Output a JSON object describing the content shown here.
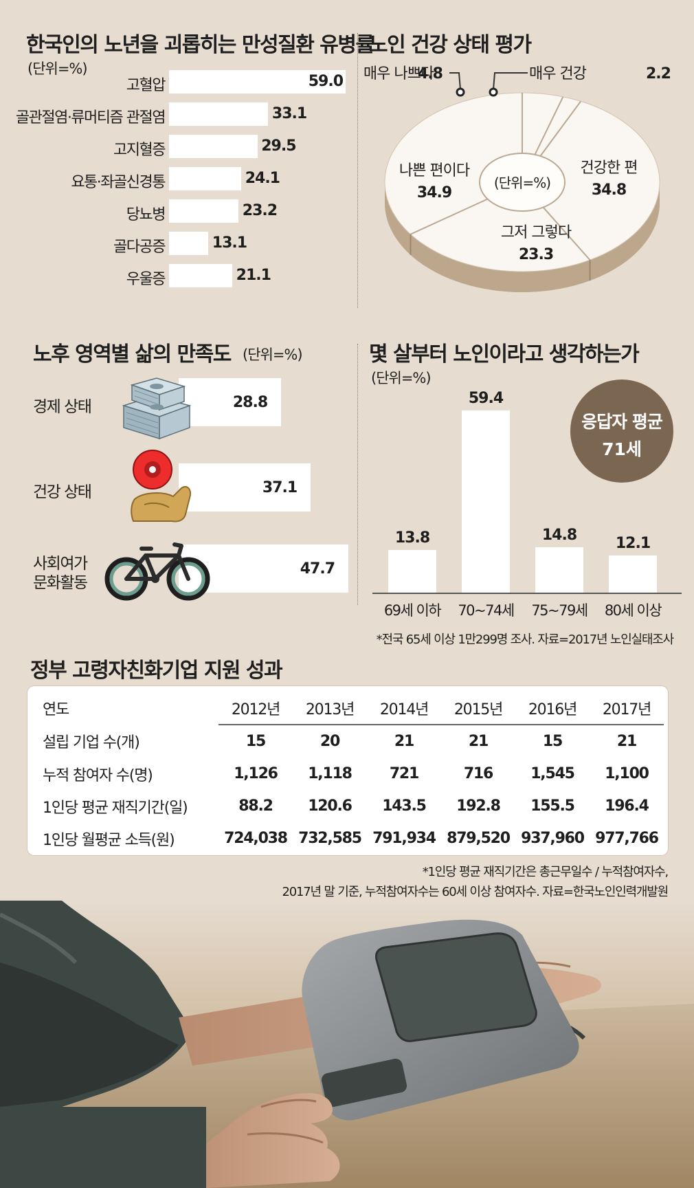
{
  "disease": {
    "title": "한국인의 노년을 괴롭히는 만성질환 유병률",
    "unit": "(단위=%)"
  },
  "health": {
    "title": "노인 건강 상태 평가",
    "unit": "(단위=%)",
    "colors": {
      "face": "#faf6f1",
      "side": "#bda78c",
      "lines": "#b9a893"
    }
  },
  "satisfaction": {
    "title": "노후 영역별 삶의 만족도",
    "unit": "(단위=%)",
    "icons": [
      "money-stack-icon",
      "flexed-arm-icon",
      "bicycle-icon"
    ]
  },
  "age": {
    "title": "몇 살부터 노인이라고 생각하는가",
    "unit": "(단위=%)",
    "badge_line1": "응답자 평균",
    "badge_line2": "71세",
    "badge_color": "#7b6651",
    "source": "*전국 65세 이상 1만299명 조사. 자료=2017년 노인실태조사"
  },
  "table": {
    "title": "정부 고령자친화기업 지원 성과",
    "header": [
      "연도",
      "2012년",
      "2013년",
      "2014년",
      "2015년",
      "2016년",
      "2017년"
    ],
    "rows": [
      [
        "설립 기업 수(개)",
        "15",
        "20",
        "21",
        "21",
        "15",
        "21"
      ],
      [
        "누적 참여자 수(명)",
        "1,126",
        "1,118",
        "721",
        "716",
        "1,545",
        "1,100"
      ],
      [
        "1인당 평균 재직기간(일)",
        "88.2",
        "120.6",
        "143.5",
        "192.8",
        "155.5",
        "196.4"
      ],
      [
        "1인당 월평균 소득(원)",
        "724,038",
        "732,585",
        "791,934",
        "879,520",
        "937,960",
        "977,766"
      ]
    ],
    "note1": "*1인당 평균 재직기간은 총근무일수 / 누적참여자수,",
    "note2": "2017년 말 기준, 누적참여자수는 60세 이상 참여자수. 자료=한국노인인력개발원"
  },
  "photo": {
    "subject": "blood-pressure-monitor",
    "colors": {
      "bg": "#d9cab6",
      "sleeve": "#3d4744",
      "skin": "#c9a085",
      "device": "#8a8d8f",
      "screen": "#4b5350"
    }
  },
  "chart_data": [
    {
      "id": "chronic-disease",
      "type": "bar",
      "orientation": "horizontal",
      "categories": [
        "고혈압",
        "골관절염·류머티즘 관절염",
        "고지혈증",
        "요통·좌골신경통",
        "당뇨병",
        "골다공증",
        "우울증"
      ],
      "values": [
        59.0,
        33.1,
        29.5,
        24.1,
        23.2,
        13.1,
        21.1
      ],
      "value_labels": [
        "59.0",
        "33.1",
        "29.5",
        "24.1",
        "23.2",
        "13.1",
        "21.1"
      ],
      "bar_color": "#ffffff"
    },
    {
      "id": "health-self-rating",
      "type": "pie",
      "style": "3d-donut",
      "slices": [
        {
          "label": "매우 나쁘다",
          "value": 4.8,
          "display": "4.8"
        },
        {
          "label": "매우 건강",
          "value": 2.2,
          "display": "2.2"
        },
        {
          "label": "건강한 편",
          "value": 34.8,
          "display": "34.8"
        },
        {
          "label": "그저 그렇다",
          "value": 23.3,
          "display": "23.3"
        },
        {
          "label": "나쁜 편이다",
          "value": 34.9,
          "display": "34.9"
        }
      ]
    },
    {
      "id": "life-satisfaction",
      "type": "bar",
      "orientation": "horizontal",
      "categories": [
        "경제 상태",
        "건강 상태",
        "사회여가 문화활동"
      ],
      "category_lines": [
        [
          "경제 상태"
        ],
        [
          "건강 상태"
        ],
        [
          "사회여가",
          "문화활동"
        ]
      ],
      "values": [
        28.8,
        37.1,
        47.7
      ],
      "value_labels": [
        "28.8",
        "37.1",
        "47.7"
      ]
    },
    {
      "id": "old-age-threshold",
      "type": "bar",
      "orientation": "vertical",
      "categories": [
        "69세 이하",
        "70~74세",
        "75~79세",
        "80세 이상"
      ],
      "values": [
        13.8,
        59.4,
        14.8,
        12.1
      ],
      "value_labels": [
        "13.8",
        "59.4",
        "14.8",
        "12.1"
      ]
    }
  ]
}
